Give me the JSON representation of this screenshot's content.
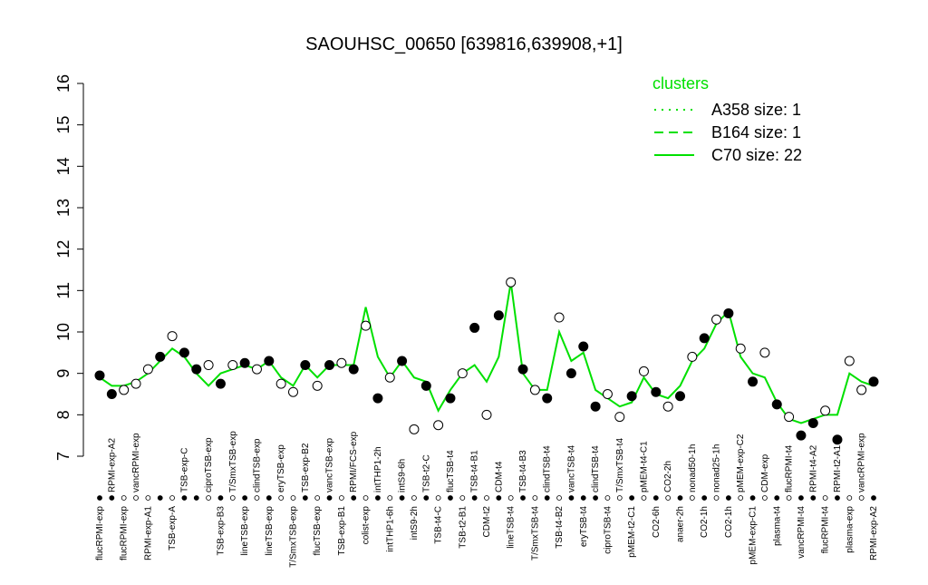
{
  "chart_data": {
    "type": "line",
    "title": "SAOUHSC_00650 [639816,639908,+1]",
    "ylim": [
      7,
      16
    ],
    "yticks": [
      7,
      8,
      9,
      10,
      11,
      12,
      13,
      14,
      15,
      16
    ],
    "legend_title": "clusters",
    "legend_position": "top-right",
    "series": [
      {
        "name": "A358 size: 1",
        "color": "#00e000",
        "style": "dotted"
      },
      {
        "name": "B164 size: 1",
        "color": "#00e000",
        "style": "dashed"
      },
      {
        "name": "C70 size: 22",
        "color": "#00e000",
        "style": "solid",
        "values": [
          8.9,
          8.7,
          8.7,
          8.8,
          9.0,
          9.3,
          9.6,
          9.4,
          9.0,
          8.7,
          9.0,
          9.1,
          9.2,
          9.1,
          9.3,
          8.9,
          8.7,
          9.2,
          8.9,
          9.2,
          9.2,
          9.2,
          10.6,
          9.4,
          8.9,
          9.3,
          8.9,
          8.8,
          8.1,
          8.6,
          9.0,
          9.2,
          8.8,
          9.4,
          11.2,
          9.0,
          8.6,
          8.6,
          10.0,
          9.3,
          9.5,
          8.6,
          8.4,
          8.2,
          8.3,
          8.9,
          8.5,
          8.4,
          8.7,
          9.3,
          9.6,
          10.2,
          10.5,
          9.4,
          9.0,
          8.9,
          8.3,
          7.9,
          7.8,
          7.9,
          8.0,
          8.0,
          9.0,
          8.8,
          8.7
        ]
      }
    ],
    "categories": [
      "flucRPMI-exp",
      "RPMI-exp-A2",
      "flucRPMI-exp",
      "vancRPMI-exp",
      "RPMI-exp-A1",
      null,
      "TSB-exp-A",
      "TSB-exp-C",
      null,
      "ciproTSB-exp",
      "TSB-exp-B3",
      "T/SmxTSB-exp",
      "lineTSB-exp",
      "clindTSB-exp",
      "lineTSB-exp",
      "eryTSB-exp",
      "T/SmxTSB-exp",
      "TSB-exp-B2",
      "flucTSB-exp",
      "vancTSB-exp",
      "TSB-exp-B1",
      "RPMI/FCS-exp",
      "colist-exp",
      "intTHP1-2h",
      "intTHP1-6h",
      "intS9-6h",
      "intS9-2h",
      "TSB-t2-C",
      "TSB-t4-C",
      "flucTSB-t4",
      "TSB-t2-B1",
      "TSB-t4-B1",
      "CDM-t2",
      "CDM-t4",
      "lineTSB-t4",
      "TSB-t4-B3",
      "T/SmxTSB-t4",
      "clindTSB-t4",
      "TSB-t4-B2",
      "vancTSB-t4",
      "eryTSB-t4",
      "clindTSB-t4",
      "ciproTSB-t4",
      "T/SmxTSB-t4",
      "pMEM-t2-C1",
      "pMEM-t4-C1",
      "CO2-6h",
      "CO2-2h",
      "anaer-2h",
      "nonad50-1h",
      "CO2-1h",
      "nonad25-1h",
      "CO2-1h",
      "pMEM-exp-C2",
      "pMEM-exp-C1",
      "CDM-exp",
      "plasma-t4",
      "flucRPMI-t4",
      "vancRPMI-t4",
      "RPMI-t4-A2",
      "flucRPMI-t4",
      "RPMI-t2-A1",
      "plasma-exp",
      "vancRPMI-exp",
      "RPMI-exp-A2"
    ],
    "points": [
      8.95,
      8.5,
      8.6,
      8.75,
      9.1,
      9.4,
      9.9,
      9.5,
      9.1,
      9.2,
      8.75,
      9.2,
      9.25,
      9.1,
      9.3,
      8.75,
      8.55,
      9.2,
      8.7,
      9.2,
      9.25,
      9.1,
      10.15,
      8.4,
      8.9,
      9.3,
      7.65,
      8.7,
      7.75,
      8.4,
      9.0,
      10.1,
      8.0,
      10.4,
      11.2,
      9.1,
      8.6,
      8.4,
      10.35,
      9.0,
      9.65,
      8.2,
      8.5,
      7.95,
      8.45,
      9.05,
      8.55,
      8.2,
      8.45,
      9.4,
      9.85,
      10.3,
      10.45,
      9.6,
      8.8,
      9.5,
      8.25,
      7.95,
      7.5,
      7.8,
      8.1,
      7.4,
      9.3,
      8.6,
      8.8
    ],
    "filled": [
      true,
      true,
      false,
      false,
      false,
      true,
      false,
      true,
      true,
      false,
      true,
      false,
      true,
      false,
      true,
      false,
      false,
      true,
      false,
      true,
      false,
      true,
      false,
      true,
      false,
      true,
      false,
      true,
      false,
      true,
      false,
      true,
      false,
      true,
      false,
      true,
      false,
      true,
      false,
      true,
      true,
      true,
      false,
      false,
      true,
      false,
      true,
      false,
      true,
      false,
      true,
      false,
      true,
      false,
      true,
      false,
      true,
      false,
      true,
      true,
      false,
      true,
      false,
      false,
      true
    ]
  }
}
